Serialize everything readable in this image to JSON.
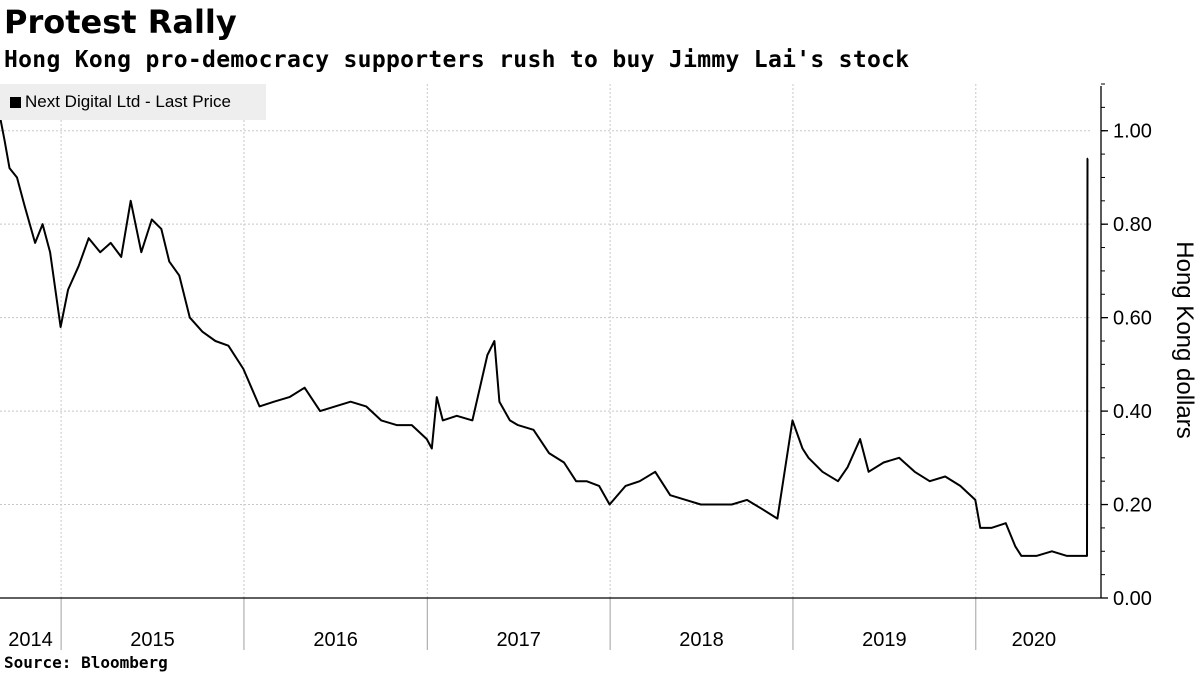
{
  "title": "Protest Rally",
  "subtitle": "Hong Kong pro-democracy supporters rush to buy Jimmy Lai's stock",
  "source": "Source: Bloomberg",
  "colors": {
    "line": "#000000",
    "grid": "#c8c8c8",
    "legend_bg": "#eeeeee"
  },
  "chart_data": {
    "type": "line",
    "title": "Protest Rally",
    "subtitle": "Hong Kong pro-democracy supporters rush to buy Jimmy Lai's stock",
    "xlabel": "",
    "ylabel": "Hong Kong dollars",
    "ylim": [
      0,
      1.1
    ],
    "y_ticks": [
      0.0,
      0.2,
      0.4,
      0.6,
      0.8,
      1.0
    ],
    "y_tick_labels": [
      "0.00",
      "0.20",
      "0.40",
      "0.60",
      "0.80",
      "1.00"
    ],
    "x_range": [
      "2014-09-01",
      "2020-08-20"
    ],
    "x_tick_labels": [
      "2014",
      "2015",
      "2016",
      "2017",
      "2018",
      "2019",
      "2020"
    ],
    "grid": true,
    "legend_position": "top-left",
    "series": [
      {
        "name": "Next Digital Ltd - Last Price",
        "x": [
          "2014-09-01",
          "2014-09-10",
          "2014-09-20",
          "2014-10-05",
          "2014-10-20",
          "2014-11-10",
          "2014-11-25",
          "2014-12-10",
          "2014-12-31",
          "2015-01-15",
          "2015-02-05",
          "2015-02-25",
          "2015-03-20",
          "2015-04-10",
          "2015-05-01",
          "2015-05-20",
          "2015-06-10",
          "2015-07-01",
          "2015-07-20",
          "2015-08-05",
          "2015-08-25",
          "2015-09-15",
          "2015-10-10",
          "2015-11-05",
          "2015-12-01",
          "2015-12-31",
          "2016-02-01",
          "2016-03-01",
          "2016-04-01",
          "2016-05-01",
          "2016-06-01",
          "2016-07-01",
          "2016-08-01",
          "2016-09-01",
          "2016-10-01",
          "2016-11-01",
          "2016-12-01",
          "2016-12-31",
          "2017-01-10",
          "2017-01-20",
          "2017-02-01",
          "2017-03-01",
          "2017-04-01",
          "2017-05-01",
          "2017-05-15",
          "2017-05-25",
          "2017-06-15",
          "2017-07-01",
          "2017-08-01",
          "2017-09-01",
          "2017-10-01",
          "2017-10-25",
          "2017-11-15",
          "2017-12-10",
          "2017-12-31",
          "2018-02-01",
          "2018-03-01",
          "2018-04-01",
          "2018-05-01",
          "2018-06-01",
          "2018-07-01",
          "2018-08-01",
          "2018-09-01",
          "2018-10-01",
          "2018-11-01",
          "2018-12-01",
          "2018-12-31",
          "2019-01-10",
          "2019-01-20",
          "2019-02-01",
          "2019-03-01",
          "2019-04-01",
          "2019-04-20",
          "2019-05-15",
          "2019-06-01",
          "2019-07-01",
          "2019-08-01",
          "2019-09-01",
          "2019-10-01",
          "2019-11-01",
          "2019-12-01",
          "2019-12-31",
          "2020-01-10",
          "2020-02-01",
          "2020-03-01",
          "2020-03-20",
          "2020-04-01",
          "2020-05-01",
          "2020-06-01",
          "2020-07-01",
          "2020-08-01",
          "2020-08-10",
          "2020-08-11",
          "2020-08-12"
        ],
        "y": [
          1.03,
          0.98,
          0.92,
          0.9,
          0.84,
          0.76,
          0.8,
          0.74,
          0.58,
          0.66,
          0.71,
          0.77,
          0.74,
          0.76,
          0.73,
          0.85,
          0.74,
          0.81,
          0.79,
          0.72,
          0.69,
          0.6,
          0.57,
          0.55,
          0.54,
          0.49,
          0.41,
          0.42,
          0.43,
          0.45,
          0.4,
          0.41,
          0.42,
          0.41,
          0.38,
          0.37,
          0.37,
          0.34,
          0.32,
          0.43,
          0.38,
          0.39,
          0.38,
          0.52,
          0.55,
          0.42,
          0.38,
          0.37,
          0.36,
          0.31,
          0.29,
          0.25,
          0.25,
          0.24,
          0.2,
          0.24,
          0.25,
          0.27,
          0.22,
          0.21,
          0.2,
          0.2,
          0.2,
          0.21,
          0.19,
          0.17,
          0.38,
          0.35,
          0.32,
          0.3,
          0.27,
          0.25,
          0.28,
          0.34,
          0.27,
          0.29,
          0.3,
          0.27,
          0.25,
          0.26,
          0.24,
          0.21,
          0.15,
          0.15,
          0.16,
          0.11,
          0.09,
          0.09,
          0.1,
          0.09,
          0.09,
          0.09,
          0.94,
          0.94
        ]
      }
    ]
  }
}
